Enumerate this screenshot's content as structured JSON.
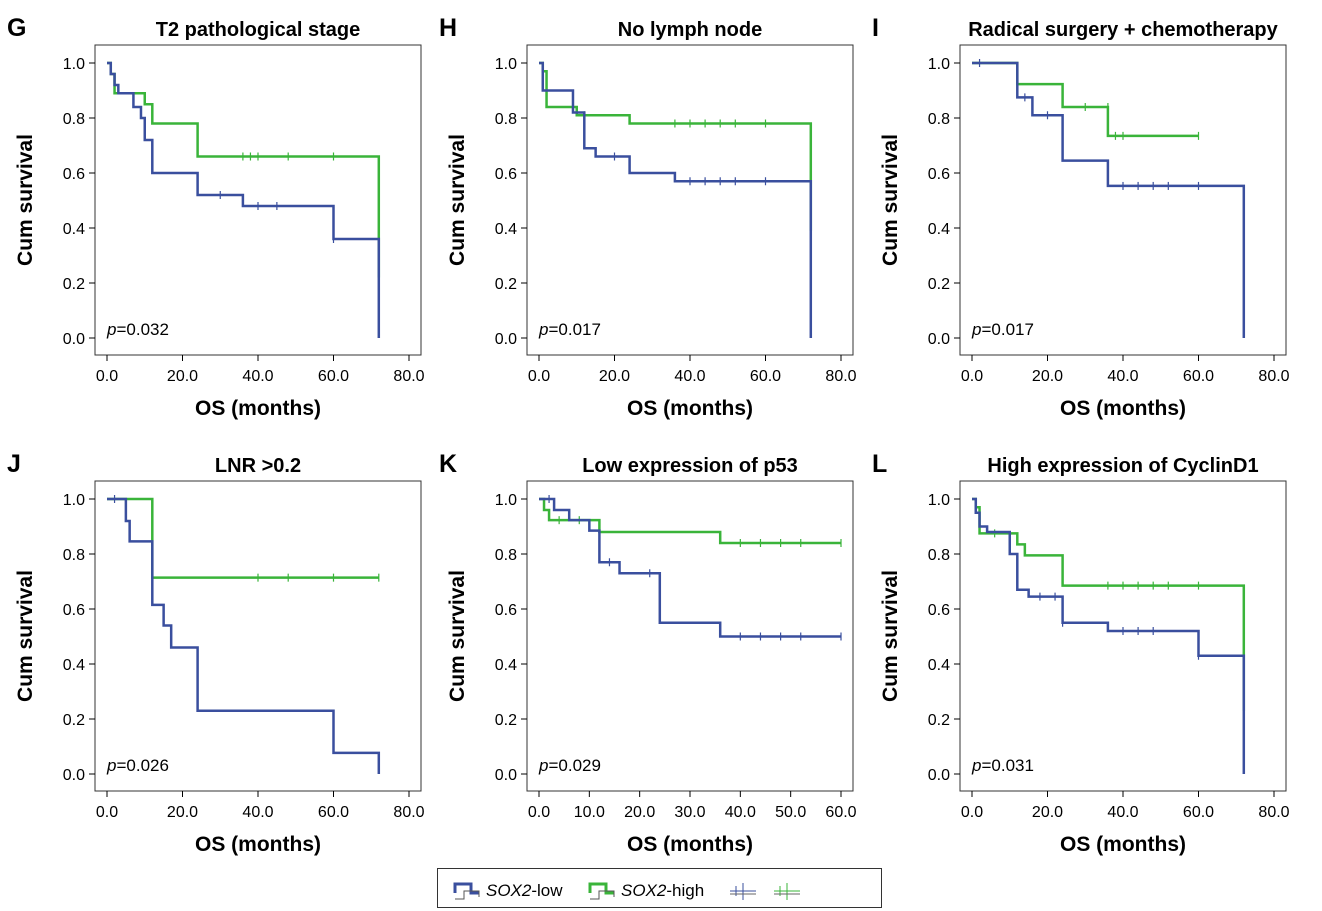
{
  "colors": {
    "low": "#3a4f9e",
    "high": "#3ab43a",
    "axis": "#000000",
    "frame": "#333333"
  },
  "legend": {
    "low_gene": "SOX2",
    "low_suffix": "-low",
    "high_gene": "SOX2",
    "high_suffix": "-high"
  },
  "chart_data": [
    {
      "type": "line",
      "panel_letter": "G",
      "title": "T2 pathological stage",
      "xlabel": "OS (months)",
      "ylabel": "Cum survival",
      "xlim": [
        0,
        80
      ],
      "ylim": [
        0,
        1
      ],
      "xticks": [
        "0.0",
        "20.0",
        "40.0",
        "60.0",
        "80.0"
      ],
      "yticks": [
        "0.0",
        "0.2",
        "0.4",
        "0.6",
        "0.8",
        "1.0"
      ],
      "p_label": "p",
      "p_value": "=0.032",
      "series": [
        {
          "key": "low",
          "steps": [
            [
              0,
              1.0
            ],
            [
              1,
              0.96
            ],
            [
              2,
              0.92
            ],
            [
              3,
              0.89
            ],
            [
              7,
              0.84
            ],
            [
              9,
              0.8
            ],
            [
              10,
              0.72
            ],
            [
              12,
              0.6
            ],
            [
              24,
              0.52
            ],
            [
              36,
              0.48
            ],
            [
              60,
              0.36
            ],
            [
              72,
              0.0
            ]
          ],
          "censors": [
            [
              30,
              0.52
            ],
            [
              40,
              0.48
            ],
            [
              45,
              0.48
            ],
            [
              60,
              0.36
            ]
          ]
        },
        {
          "key": "high",
          "steps": [
            [
              0,
              1.0
            ],
            [
              1,
              0.96
            ],
            [
              2,
              0.89
            ],
            [
              10,
              0.85
            ],
            [
              12,
              0.78
            ],
            [
              24,
              0.66
            ],
            [
              72,
              0.22
            ]
          ],
          "censors": [
            [
              36,
              0.66
            ],
            [
              38,
              0.66
            ],
            [
              40,
              0.66
            ],
            [
              48,
              0.66
            ],
            [
              60,
              0.66
            ],
            [
              72,
              0.22
            ]
          ]
        }
      ]
    },
    {
      "type": "line",
      "panel_letter": "H",
      "title": "No lymph node",
      "xlabel": "OS (months)",
      "ylabel": "Cum survival",
      "xlim": [
        0,
        80
      ],
      "ylim": [
        0,
        1
      ],
      "xticks": [
        "0.0",
        "20.0",
        "40.0",
        "60.0",
        "80.0"
      ],
      "yticks": [
        "0.0",
        "0.2",
        "0.4",
        "0.6",
        "0.8",
        "1.0"
      ],
      "p_label": "p",
      "p_value": "=0.017",
      "series": [
        {
          "key": "low",
          "steps": [
            [
              0,
              1.0
            ],
            [
              1,
              0.9
            ],
            [
              9,
              0.82
            ],
            [
              12,
              0.69
            ],
            [
              15,
              0.66
            ],
            [
              24,
              0.6
            ],
            [
              36,
              0.57
            ],
            [
              72,
              0.0
            ]
          ],
          "censors": [
            [
              20,
              0.66
            ],
            [
              40,
              0.57
            ],
            [
              44,
              0.57
            ],
            [
              48,
              0.57
            ],
            [
              52,
              0.57
            ],
            [
              60,
              0.57
            ]
          ]
        },
        {
          "key": "high",
          "steps": [
            [
              0,
              1.0
            ],
            [
              1,
              0.97
            ],
            [
              2,
              0.84
            ],
            [
              10,
              0.81
            ],
            [
              24,
              0.78
            ],
            [
              72,
              0.39
            ]
          ],
          "censors": [
            [
              12,
              0.81
            ],
            [
              36,
              0.78
            ],
            [
              40,
              0.78
            ],
            [
              44,
              0.78
            ],
            [
              48,
              0.78
            ],
            [
              52,
              0.78
            ],
            [
              60,
              0.78
            ],
            [
              72,
              0.39
            ]
          ]
        }
      ]
    },
    {
      "type": "line",
      "panel_letter": "I",
      "title": "Radical surgery + chemotherapy",
      "xlabel": "OS (months)",
      "ylabel": "Cum survival",
      "xlim": [
        0,
        80
      ],
      "ylim": [
        0,
        1
      ],
      "xticks": [
        "0.0",
        "20.0",
        "40.0",
        "60.0",
        "80.0"
      ],
      "yticks": [
        "0.0",
        "0.2",
        "0.4",
        "0.6",
        "0.8",
        "1.0"
      ],
      "p_label": "p",
      "p_value": "=0.017",
      "series": [
        {
          "key": "low",
          "steps": [
            [
              0,
              1.0
            ],
            [
              12,
              0.875
            ],
            [
              16,
              0.81
            ],
            [
              24,
              0.645
            ],
            [
              36,
              0.553
            ],
            [
              72,
              0.0
            ]
          ],
          "censors": [
            [
              2,
              1.0
            ],
            [
              14,
              0.875
            ],
            [
              20,
              0.81
            ],
            [
              40,
              0.553
            ],
            [
              44,
              0.553
            ],
            [
              48,
              0.553
            ],
            [
              52,
              0.553
            ],
            [
              60,
              0.553
            ]
          ]
        },
        {
          "key": "high",
          "steps": [
            [
              0,
              1.0
            ],
            [
              12,
              0.923
            ],
            [
              24,
              0.84
            ],
            [
              36,
              0.735
            ],
            [
              60,
              0.735
            ]
          ],
          "censors": [
            [
              30,
              0.84
            ],
            [
              36,
              0.84
            ],
            [
              38,
              0.735
            ],
            [
              40,
              0.735
            ],
            [
              60,
              0.735
            ]
          ]
        }
      ]
    },
    {
      "type": "line",
      "panel_letter": "J",
      "title": "LNR >0.2",
      "xlabel": "OS (months)",
      "ylabel": "Cum survival",
      "xlim": [
        0,
        80
      ],
      "ylim": [
        0,
        1
      ],
      "xticks": [
        "0.0",
        "20.0",
        "40.0",
        "60.0",
        "80.0"
      ],
      "yticks": [
        "0.0",
        "0.2",
        "0.4",
        "0.6",
        "0.8",
        "1.0"
      ],
      "p_label": "p",
      "p_value": "=0.026",
      "series": [
        {
          "key": "low",
          "steps": [
            [
              0,
              1.0
            ],
            [
              5,
              0.92
            ],
            [
              6,
              0.846
            ],
            [
              11,
              0.846
            ],
            [
              12,
              0.615
            ],
            [
              15,
              0.54
            ],
            [
              17,
              0.46
            ],
            [
              24,
              0.23
            ],
            [
              60,
              0.077
            ],
            [
              72,
              0.0
            ]
          ],
          "censors": [
            [
              2,
              1.0
            ]
          ]
        },
        {
          "key": "high",
          "steps": [
            [
              0,
              1.0
            ],
            [
              12,
              0.714
            ],
            [
              72,
              0.714
            ]
          ],
          "censors": [
            [
              40,
              0.714
            ],
            [
              48,
              0.714
            ],
            [
              60,
              0.714
            ],
            [
              72,
              0.714
            ]
          ]
        }
      ]
    },
    {
      "type": "line",
      "panel_letter": "K",
      "title": "Low expression of p53",
      "xlabel": "OS (months)",
      "ylabel": "Cum survival",
      "xlim": [
        0,
        60
      ],
      "ylim": [
        0,
        1
      ],
      "xticks": [
        "0.0",
        "10.0",
        "20.0",
        "30.0",
        "40.0",
        "50.0",
        "60.0"
      ],
      "yticks": [
        "0.0",
        "0.2",
        "0.4",
        "0.6",
        "0.8",
        "1.0"
      ],
      "p_label": "p",
      "p_value": "=0.029",
      "series": [
        {
          "key": "low",
          "steps": [
            [
              0,
              1.0
            ],
            [
              3,
              0.96
            ],
            [
              6,
              0.923
            ],
            [
              10,
              0.885
            ],
            [
              12,
              0.77
            ],
            [
              16,
              0.73
            ],
            [
              24,
              0.55
            ],
            [
              36,
              0.5
            ],
            [
              60,
              0.5
            ]
          ],
          "censors": [
            [
              2,
              1.0
            ],
            [
              14,
              0.77
            ],
            [
              22,
              0.73
            ],
            [
              40,
              0.5
            ],
            [
              44,
              0.5
            ],
            [
              48,
              0.5
            ],
            [
              52,
              0.5
            ],
            [
              60,
              0.5
            ]
          ]
        },
        {
          "key": "high",
          "steps": [
            [
              0,
              1.0
            ],
            [
              1,
              0.96
            ],
            [
              2,
              0.923
            ],
            [
              12,
              0.88
            ],
            [
              36,
              0.84
            ],
            [
              60,
              0.84
            ]
          ],
          "censors": [
            [
              4,
              0.923
            ],
            [
              8,
              0.923
            ],
            [
              40,
              0.84
            ],
            [
              44,
              0.84
            ],
            [
              48,
              0.84
            ],
            [
              52,
              0.84
            ],
            [
              60,
              0.84
            ]
          ]
        }
      ]
    },
    {
      "type": "line",
      "panel_letter": "L",
      "title": "High expression of CyclinD1",
      "xlabel": "OS (months)",
      "ylabel": "Cum survival",
      "xlim": [
        0,
        80
      ],
      "ylim": [
        0,
        1
      ],
      "xticks": [
        "0.0",
        "20.0",
        "40.0",
        "60.0",
        "80.0"
      ],
      "yticks": [
        "0.0",
        "0.2",
        "0.4",
        "0.6",
        "0.8",
        "1.0"
      ],
      "p_label": "p",
      "p_value": "=0.031",
      "series": [
        {
          "key": "low",
          "steps": [
            [
              0,
              1.0
            ],
            [
              1,
              0.95
            ],
            [
              2,
              0.9
            ],
            [
              4,
              0.88
            ],
            [
              10,
              0.8
            ],
            [
              12,
              0.67
            ],
            [
              15,
              0.645
            ],
            [
              24,
              0.55
            ],
            [
              36,
              0.52
            ],
            [
              60,
              0.43
            ],
            [
              72,
              0.0
            ]
          ],
          "censors": [
            [
              18,
              0.645
            ],
            [
              22,
              0.645
            ],
            [
              24,
              0.55
            ],
            [
              40,
              0.52
            ],
            [
              44,
              0.52
            ],
            [
              48,
              0.52
            ],
            [
              60,
              0.43
            ]
          ]
        },
        {
          "key": "high",
          "steps": [
            [
              0,
              1.0
            ],
            [
              1,
              0.97
            ],
            [
              2,
              0.875
            ],
            [
              12,
              0.835
            ],
            [
              14,
              0.795
            ],
            [
              24,
              0.685
            ],
            [
              72,
              0.23
            ]
          ],
          "censors": [
            [
              6,
              0.875
            ],
            [
              36,
              0.685
            ],
            [
              40,
              0.685
            ],
            [
              44,
              0.685
            ],
            [
              48,
              0.685
            ],
            [
              52,
              0.685
            ],
            [
              60,
              0.685
            ],
            [
              72,
              0.23
            ]
          ]
        }
      ]
    }
  ]
}
